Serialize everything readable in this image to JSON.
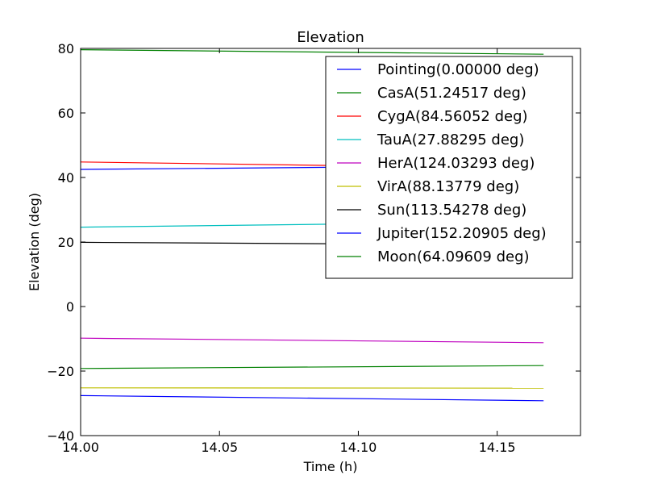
{
  "chart_data": {
    "type": "line",
    "title": "Elevation",
    "xlabel": "Time (h)",
    "ylabel": "Elevation (deg)",
    "xlim": [
      14.0,
      14.18
    ],
    "ylim": [
      -40,
      80
    ],
    "xticks": [
      {
        "value": 14.0,
        "label": "14.00"
      },
      {
        "value": 14.05,
        "label": "14.05"
      },
      {
        "value": 14.1,
        "label": "14.10"
      },
      {
        "value": 14.15,
        "label": "14.15"
      }
    ],
    "yticks": [
      {
        "value": -40,
        "label": "−40"
      },
      {
        "value": -20,
        "label": "−20"
      },
      {
        "value": 0,
        "label": "0"
      },
      {
        "value": 20,
        "label": "20"
      },
      {
        "value": 40,
        "label": "40"
      },
      {
        "value": 60,
        "label": "60"
      },
      {
        "value": 80,
        "label": "80"
      }
    ],
    "legend_position": "upper-right",
    "series": [
      {
        "name": "Pointing(0.00000 deg)",
        "color": "#0000ff",
        "x": [
          14.0,
          14.1667
        ],
        "values": [
          42.5,
          43.7
        ]
      },
      {
        "name": "CasA(51.24517 deg)",
        "color": "#008000",
        "x": [
          14.0,
          14.1667
        ],
        "values": [
          79.6,
          78.2
        ]
      },
      {
        "name": "CygA(84.56052 deg)",
        "color": "#ff0000",
        "x": [
          14.0,
          14.1667
        ],
        "values": [
          44.8,
          42.8
        ]
      },
      {
        "name": "TauA(27.88295 deg)",
        "color": "#00bfbf",
        "x": [
          14.0,
          14.1667
        ],
        "values": [
          24.6,
          26.3
        ]
      },
      {
        "name": "HerA(124.03293 deg)",
        "color": "#bf00bf",
        "x": [
          14.0,
          14.1667
        ],
        "values": [
          -9.8,
          -11.2
        ]
      },
      {
        "name": "VirA(88.13779 deg)",
        "color": "#bfbf00",
        "x": [
          14.0,
          14.1667
        ],
        "values": [
          -25.2,
          -25.3
        ]
      },
      {
        "name": "Sun(113.54278 deg)",
        "color": "#000000",
        "x": [
          14.0,
          14.1667
        ],
        "values": [
          19.9,
          19.1
        ]
      },
      {
        "name": "Jupiter(152.20905 deg)",
        "color": "#0000ff",
        "x": [
          14.0,
          14.1667
        ],
        "values": [
          -27.6,
          -29.2
        ]
      },
      {
        "name": "Moon(64.09609 deg)",
        "color": "#008000",
        "x": [
          14.0,
          14.1667
        ],
        "values": [
          -19.2,
          -18.3
        ]
      }
    ]
  }
}
